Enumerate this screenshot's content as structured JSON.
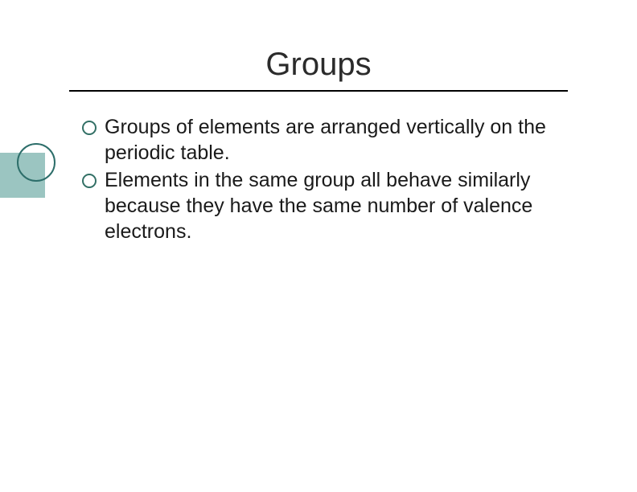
{
  "slide": {
    "title": "Groups",
    "bullets": [
      "Groups of elements are arranged vertically on the periodic table.",
      "Elements in the same group all behave similarly because they have the same number of valence electrons."
    ]
  },
  "style": {
    "background_color": "#ffffff",
    "title_color": "#2b2b2b",
    "title_fontsize": 40,
    "title_rule_color": "#000000",
    "body_color": "#1a1a1a",
    "body_fontsize": 25,
    "bullet_border_color": "#337066",
    "decoration_square_color": "#9bc5c1",
    "decoration_circle_border": "#2d6e6a",
    "font_family": "Verdana"
  }
}
